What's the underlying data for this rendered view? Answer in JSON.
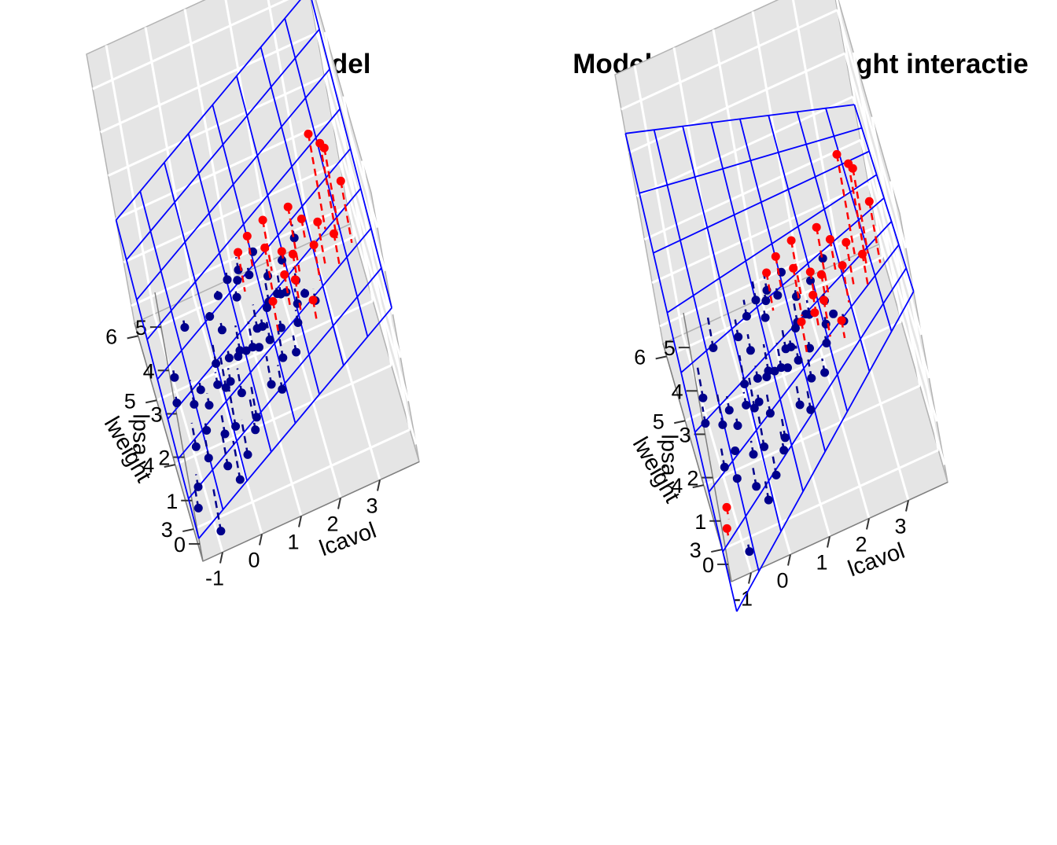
{
  "chart_data": [
    {
      "type": "scatter",
      "chart_style": "3d-scatter-with-regression-plane",
      "title": "Additive model",
      "xlabel": "lcavol",
      "ylabel": "lweight",
      "zlabel": "lpsa",
      "x_ticks": [
        "-1",
        "0",
        "1",
        "2",
        "3"
      ],
      "y_ticks": [
        "3",
        "4",
        "5",
        "6"
      ],
      "z_ticks": [
        "0",
        "1",
        "2",
        "3",
        "4",
        "5"
      ],
      "xlim": [
        -1.5,
        4
      ],
      "ylim": [
        2.5,
        6.2
      ],
      "zlim": [
        -0.4,
        5.8
      ],
      "grid": true,
      "colors": {
        "below_plane": "#00008b",
        "above_plane": "#ff0000",
        "plane": "#0000ff",
        "panel": "#e5e5e5",
        "gridline": "#ffffff"
      },
      "plane": {
        "intercept": -0.3,
        "b_lcavol": 0.55,
        "b_lweight": 0.5
      },
      "series": [
        {
          "name": "",
          "points": [
            [
              -1.3,
              3.0,
              0.0
            ],
            [
              -1.2,
              3.1,
              0.3
            ],
            [
              -0.9,
              2.8,
              -0.4
            ],
            [
              -0.8,
              3.3,
              0.5
            ],
            [
              -1.0,
              3.6,
              0.4
            ],
            [
              -0.7,
              3.5,
              0.8
            ],
            [
              -0.5,
              3.7,
              1.0
            ],
            [
              -0.3,
              3.4,
              0.7
            ],
            [
              -0.6,
              3.9,
              1.1
            ],
            [
              -0.2,
              3.8,
              1.2
            ],
            [
              0.0,
              3.5,
              0.6
            ],
            [
              0.1,
              3.7,
              1.3
            ],
            [
              0.2,
              3.9,
              1.5
            ],
            [
              -0.1,
              4.1,
              1.2
            ],
            [
              0.3,
              3.6,
              1.1
            ],
            [
              0.4,
              3.8,
              1.6
            ],
            [
              0.5,
              4.0,
              1.4
            ],
            [
              0.6,
              3.7,
              1.8
            ],
            [
              0.2,
              4.2,
              1.7
            ],
            [
              0.8,
              3.9,
              1.5
            ],
            [
              0.9,
              3.6,
              1.9
            ],
            [
              1.0,
              4.0,
              1.7
            ],
            [
              1.1,
              3.8,
              2.0
            ],
            [
              0.7,
              4.3,
              2.1
            ],
            [
              1.2,
              3.7,
              1.8
            ],
            [
              1.3,
              3.9,
              2.2
            ],
            [
              1.4,
              4.1,
              2.0
            ],
            [
              1.5,
              3.6,
              2.1
            ],
            [
              1.1,
              4.4,
              2.3
            ],
            [
              1.6,
              3.9,
              2.4
            ],
            [
              1.7,
              4.0,
              2.2
            ],
            [
              1.8,
              3.8,
              2.5
            ],
            [
              0.9,
              4.6,
              2.2
            ],
            [
              1.4,
              3.5,
              1.6
            ],
            [
              2.0,
              3.7,
              2.3
            ],
            [
              0.0,
              4.4,
              1.8
            ],
            [
              0.5,
              3.3,
              0.9
            ],
            [
              -0.4,
              3.2,
              0.3
            ],
            [
              1.9,
              4.2,
              2.6
            ],
            [
              2.1,
              3.9,
              2.5
            ],
            [
              0.3,
              4.5,
              2.0
            ],
            [
              1.0,
              3.4,
              1.3
            ],
            [
              -1.2,
              4.0,
              0.9
            ],
            [
              -0.6,
              4.6,
              1.5
            ],
            [
              2.3,
              4.3,
              2.8
            ],
            [
              1.5,
              4.2,
              2.4
            ],
            [
              2.2,
              3.6,
              2.6
            ],
            [
              0.6,
              4.6,
              2.1
            ],
            [
              -0.2,
              3.0,
              0.2
            ],
            [
              1.2,
              3.2,
              1.4
            ],
            [
              0.4,
              3.2,
              0.8
            ],
            [
              -0.8,
              4.0,
              0.7
            ],
            [
              1.7,
              3.3,
              1.9
            ],
            [
              0.1,
              3.1,
              0.5
            ],
            [
              2.4,
              3.5,
              2.5
            ],
            [
              0.8,
              4.4,
              2.3
            ],
            [
              -1.1,
              4.3,
              1.0
            ],
            [
              1.3,
              4.5,
              2.6
            ],
            [
              0.0,
              3.9,
              0.9
            ],
            [
              1.9,
              3.5,
              2.2
            ]
          ]
        },
        {
          "name": "",
          "points": [
            [
              0.9,
              4.2,
              3.2
            ],
            [
              1.5,
              3.9,
              3.5
            ],
            [
              1.6,
              4.1,
              3.8
            ],
            [
              2.2,
              3.8,
              4.3
            ],
            [
              2.5,
              4.0,
              3.6
            ],
            [
              2.8,
              3.6,
              4.0
            ],
            [
              3.0,
              3.9,
              5.5
            ],
            [
              3.2,
              3.7,
              5.5
            ],
            [
              3.3,
              3.8,
              5.2
            ],
            [
              3.5,
              3.5,
              4.8
            ],
            [
              2.1,
              3.7,
              3.4
            ],
            [
              1.9,
              4.0,
              3.1
            ],
            [
              1.2,
              4.3,
              3.3
            ],
            [
              2.6,
              3.5,
              3.7
            ],
            [
              3.1,
              3.4,
              3.9
            ],
            [
              1.8,
              3.6,
              3.2
            ],
            [
              2.3,
              3.2,
              3.0
            ],
            [
              2.0,
              3.4,
              3.3
            ],
            [
              1.4,
              3.5,
              2.9
            ]
          ]
        }
      ]
    },
    {
      "type": "scatter",
      "chart_style": "3d-scatter-with-regression-plane",
      "title": "Model met lcavol:lweight interactie",
      "xlabel": "lcavol",
      "ylabel": "lweight",
      "zlabel": "lpsa",
      "x_ticks": [
        "-1",
        "0",
        "1",
        "2",
        "3"
      ],
      "y_ticks": [
        "3",
        "4",
        "5",
        "6"
      ],
      "z_ticks": [
        "0",
        "1",
        "2",
        "3",
        "4",
        "5"
      ],
      "xlim": [
        -1.5,
        4
      ],
      "ylim": [
        2.5,
        6.2
      ],
      "zlim": [
        -0.4,
        5.8
      ],
      "grid": true,
      "colors": {
        "below_plane": "#00008b",
        "above_plane": "#ff0000",
        "plane": "#0000ff",
        "panel": "#e5e5e5",
        "gridline": "#ffffff"
      },
      "plane": {
        "intercept": -2.2,
        "b_lcavol": 1.75,
        "b_lweight": 1.0,
        "b_interaction": -0.33
      },
      "series": [
        {
          "name": "",
          "points": [
            [
              -1.3,
              3.0,
              0.0
            ],
            [
              -1.2,
              3.1,
              0.3
            ],
            [
              -0.9,
              2.8,
              -0.4
            ],
            [
              -0.8,
              3.3,
              0.5
            ],
            [
              -1.0,
              3.6,
              0.4
            ],
            [
              -0.7,
              3.5,
              0.8
            ],
            [
              -0.5,
              3.7,
              1.0
            ],
            [
              -0.3,
              3.4,
              0.7
            ],
            [
              -0.6,
              3.9,
              1.1
            ],
            [
              -0.2,
              3.8,
              1.2
            ],
            [
              0.0,
              3.5,
              0.6
            ],
            [
              0.1,
              3.7,
              1.3
            ],
            [
              0.2,
              3.9,
              1.5
            ],
            [
              -0.1,
              4.1,
              1.2
            ],
            [
              0.3,
              3.6,
              1.1
            ],
            [
              0.4,
              3.8,
              1.6
            ],
            [
              0.5,
              4.0,
              1.4
            ],
            [
              0.6,
              3.7,
              1.8
            ],
            [
              0.2,
              4.2,
              1.7
            ],
            [
              0.8,
              3.9,
              1.5
            ],
            [
              0.9,
              3.6,
              1.9
            ],
            [
              1.0,
              4.0,
              1.7
            ],
            [
              1.1,
              3.8,
              2.0
            ],
            [
              0.7,
              4.3,
              2.1
            ],
            [
              1.2,
              3.7,
              1.8
            ],
            [
              1.3,
              3.9,
              2.2
            ],
            [
              1.4,
              4.1,
              2.0
            ],
            [
              1.5,
              3.6,
              2.1
            ],
            [
              1.1,
              4.4,
              2.3
            ],
            [
              1.6,
              3.9,
              2.4
            ],
            [
              1.7,
              4.0,
              2.2
            ],
            [
              1.8,
              3.8,
              2.5
            ],
            [
              0.9,
              4.6,
              2.2
            ],
            [
              1.4,
              3.5,
              1.6
            ],
            [
              2.0,
              3.7,
              2.3
            ],
            [
              0.0,
              4.4,
              1.8
            ],
            [
              0.5,
              3.3,
              0.9
            ],
            [
              -0.4,
              3.2,
              0.3
            ],
            [
              1.9,
              4.2,
              2.6
            ],
            [
              2.1,
              3.9,
              2.5
            ],
            [
              0.3,
              4.5,
              2.0
            ],
            [
              1.0,
              3.4,
              1.3
            ],
            [
              -1.2,
              4.0,
              0.9
            ],
            [
              -0.6,
              4.6,
              1.5
            ],
            [
              2.3,
              4.3,
              2.8
            ],
            [
              1.5,
              4.2,
              2.4
            ],
            [
              2.2,
              3.6,
              2.6
            ],
            [
              0.6,
              4.6,
              2.1
            ],
            [
              -0.2,
              3.0,
              0.2
            ],
            [
              1.2,
              3.2,
              1.4
            ],
            [
              0.4,
              3.2,
              0.8
            ],
            [
              -0.8,
              4.0,
              0.7
            ],
            [
              1.7,
              3.3,
              1.9
            ],
            [
              0.1,
              3.1,
              0.5
            ],
            [
              2.4,
              3.5,
              2.5
            ],
            [
              0.8,
              4.4,
              2.3
            ],
            [
              -1.1,
              4.3,
              1.0
            ],
            [
              1.3,
              4.5,
              2.6
            ],
            [
              0.0,
              3.9,
              0.9
            ],
            [
              1.9,
              3.5,
              2.2
            ]
          ]
        },
        {
          "name": "",
          "points": [
            [
              0.9,
              4.2,
              3.2
            ],
            [
              1.5,
              3.9,
              3.5
            ],
            [
              1.6,
              4.1,
              3.8
            ],
            [
              2.2,
              3.8,
              4.3
            ],
            [
              2.5,
              4.0,
              3.6
            ],
            [
              2.8,
              3.6,
              4.0
            ],
            [
              3.0,
              3.9,
              5.5
            ],
            [
              3.2,
              3.7,
              5.5
            ],
            [
              3.3,
              3.8,
              5.2
            ],
            [
              3.5,
              3.5,
              4.8
            ],
            [
              2.1,
              3.7,
              3.4
            ],
            [
              1.9,
              4.0,
              3.1
            ],
            [
              1.2,
              4.3,
              3.3
            ],
            [
              2.6,
              3.5,
              3.7
            ],
            [
              3.1,
              3.4,
              3.9
            ],
            [
              1.8,
              3.6,
              3.2
            ],
            [
              2.3,
              3.2,
              3.0
            ],
            [
              2.0,
              3.4,
              3.3
            ],
            [
              1.4,
              3.5,
              2.9
            ]
          ]
        }
      ]
    }
  ]
}
